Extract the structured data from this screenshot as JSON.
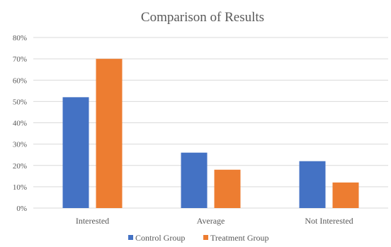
{
  "chart_data": {
    "type": "bar",
    "title": "Comparison of Results",
    "categories": [
      "Interested",
      "Average",
      "Not Interested"
    ],
    "series": [
      {
        "name": "Control Group",
        "values": [
          52,
          26,
          22
        ],
        "color": "#4472c4"
      },
      {
        "name": "Treatment Group",
        "values": [
          70,
          18,
          12
        ],
        "color": "#ed7d31"
      }
    ],
    "ylim": [
      0,
      80
    ],
    "yticks": [
      "0%",
      "10%",
      "20%",
      "30%",
      "40%",
      "50%",
      "60%",
      "70%",
      "80%"
    ],
    "unit": "%",
    "grid": true,
    "legend": "bottom"
  }
}
